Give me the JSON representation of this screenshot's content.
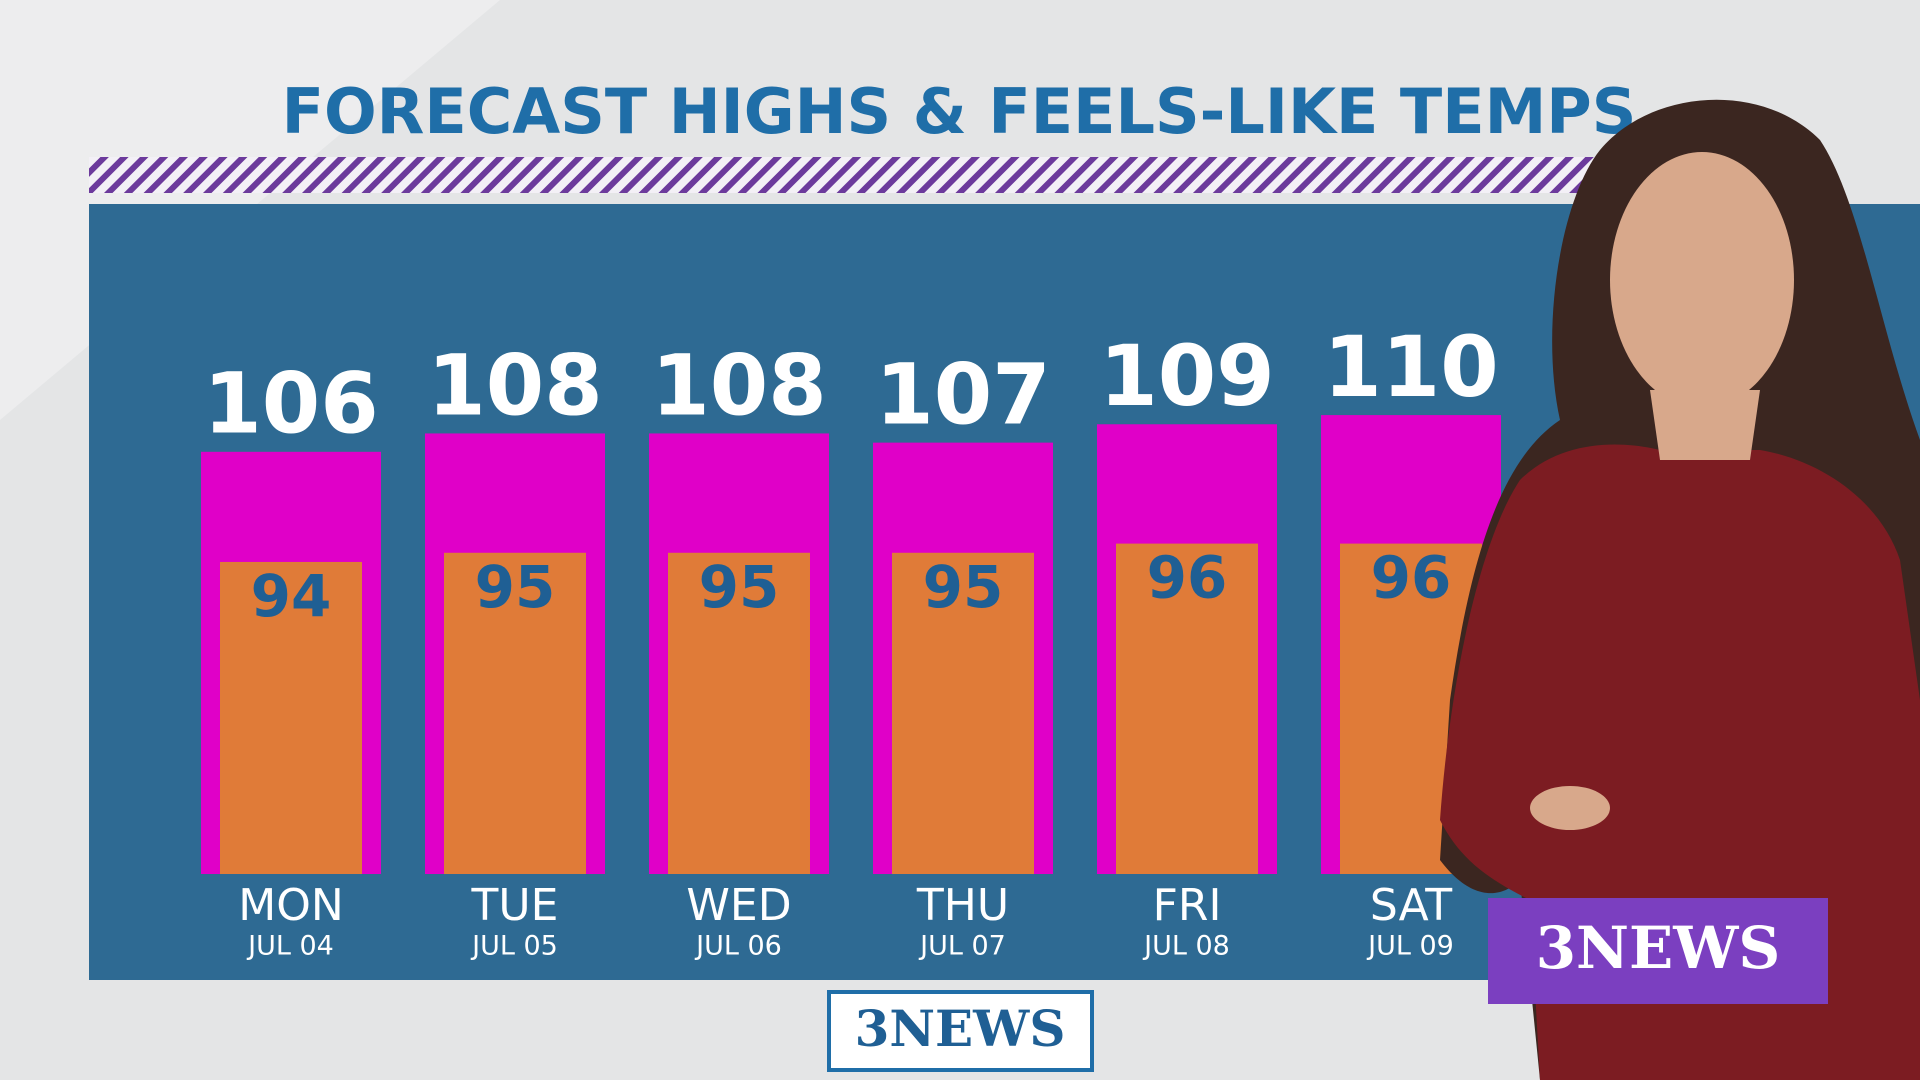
{
  "chart_data": {
    "type": "bar",
    "title": "FORECAST HIGHS & FEELS-LIKE TEMPS",
    "categories": [
      "MON",
      "TUE",
      "WED",
      "THU",
      "FRI",
      "SAT"
    ],
    "dates": [
      "JUL 04",
      "JUL 05",
      "JUL 06",
      "JUL 07",
      "JUL 08",
      "JUL 09"
    ],
    "series": [
      {
        "name": "Feels-like",
        "color": "#e000c8",
        "values": [
          106,
          108,
          108,
          107,
          109,
          110
        ]
      },
      {
        "name": "High",
        "color": "#e07b38",
        "values": [
          94,
          95,
          95,
          95,
          96,
          96
        ]
      }
    ],
    "ylim": [
      60,
      133
    ]
  },
  "branding": {
    "bottom_logo": "3NEWS",
    "corner_logo": "3NEWS"
  }
}
